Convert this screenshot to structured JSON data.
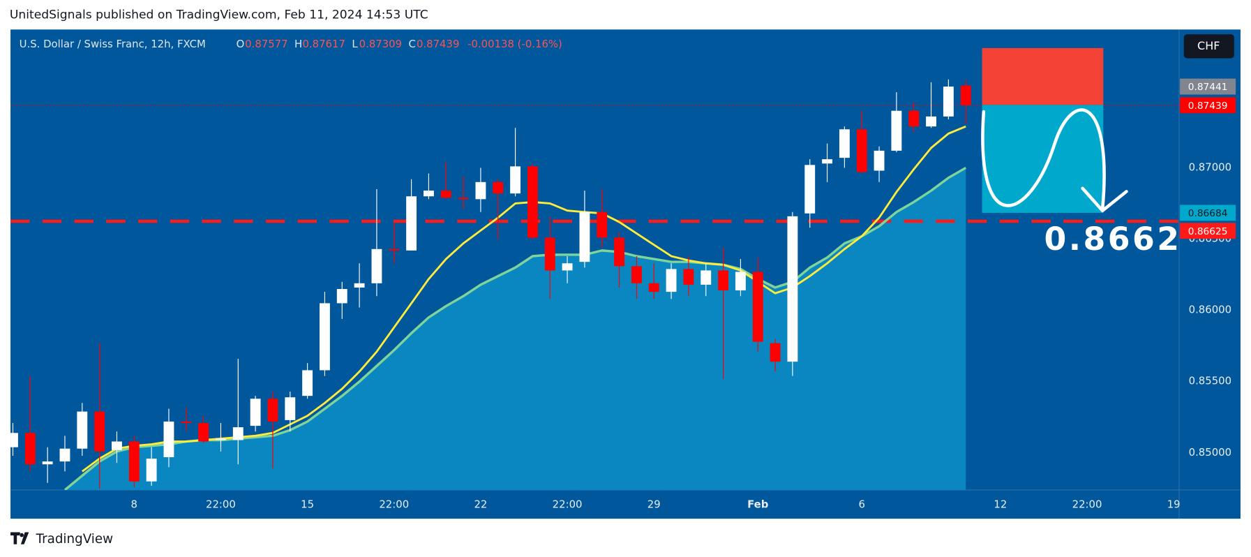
{
  "header": {
    "text": "UnitedSignals published on TradingView.com, Feb 11, 2024 14:53 UTC"
  },
  "footer": {
    "brand": "TradingView"
  },
  "chart_data": {
    "type": "candlestick",
    "title": "U.S. Dollar / Swiss Franc, 12h, FXCM",
    "legend": {
      "o": "O",
      "h": "H",
      "l": "L",
      "c": "C",
      "change": "-0.00138 (-0.16%)"
    },
    "currency": "CHF",
    "categories": [
      null,
      null,
      null,
      null,
      null,
      null,
      null,
      "8",
      null,
      null,
      null,
      null,
      "22:00",
      null,
      null,
      null,
      null,
      "15",
      null,
      null,
      null,
      null,
      "22:00",
      null,
      null,
      null,
      null,
      "22",
      null,
      null,
      null,
      null,
      "22:00",
      null,
      null,
      null,
      null,
      "29",
      null,
      null,
      null,
      null,
      null,
      "Feb",
      null,
      null,
      null,
      null,
      null,
      "6",
      null,
      null,
      null,
      null,
      null,
      null,
      null,
      "12",
      null,
      null,
      null,
      null,
      "22:00",
      null,
      null,
      null,
      null,
      "19"
    ],
    "open": [
      0.8504,
      0.8514,
      0.8492,
      0.8494,
      0.8503,
      0.8529,
      0.8502,
      0.8508,
      0.848,
      0.8497,
      0.8522,
      0.8521,
      0.8509,
      0.8509,
      0.8519,
      0.8538,
      0.8523,
      0.854,
      0.8558,
      0.8605,
      0.8616,
      0.8619,
      0.8643,
      0.8642,
      0.868,
      0.8684,
      0.8679,
      0.8678,
      0.869,
      0.8682,
      0.8701,
      0.8651,
      0.8628,
      0.8634,
      0.8669,
      0.8651,
      0.8631,
      0.8619,
      0.8613,
      0.8629,
      0.8618,
      0.8628,
      0.8614,
      0.8627,
      0.8577,
      0.8564,
      0.8668,
      0.8703,
      0.8707,
      0.8727,
      0.8698,
      0.8712,
      0.874,
      0.8729,
      0.8736,
      0.87577,
      null,
      null,
      null,
      null,
      null,
      null,
      null,
      null,
      null,
      null,
      null,
      null
    ],
    "high": [
      0.8521,
      0.8554,
      0.8504,
      0.8512,
      0.8535,
      0.8577,
      0.8515,
      0.8512,
      0.8504,
      0.8531,
      0.8532,
      0.8526,
      0.8521,
      0.8566,
      0.854,
      0.8543,
      0.8543,
      0.8563,
      0.8613,
      0.862,
      0.8633,
      0.8685,
      0.8661,
      0.8692,
      0.8696,
      0.8704,
      0.8694,
      0.87,
      0.8692,
      0.8728,
      0.8703,
      0.8666,
      0.8638,
      0.8684,
      0.8685,
      0.8655,
      0.8638,
      0.8633,
      0.8633,
      0.8638,
      0.8633,
      0.8644,
      0.8636,
      0.8637,
      0.858,
      0.8669,
      0.8706,
      0.8717,
      0.8729,
      0.874,
      0.8715,
      0.8753,
      0.8746,
      0.876,
      0.8762,
      0.87617,
      null,
      null,
      null,
      null,
      null,
      null,
      null,
      null,
      null,
      null,
      null,
      null
    ],
    "low": [
      0.8498,
      0.8487,
      0.8479,
      0.8487,
      0.8498,
      0.8475,
      0.8493,
      0.8476,
      0.8477,
      0.849,
      0.8515,
      0.8507,
      0.8501,
      0.8492,
      0.8515,
      0.8489,
      0.8515,
      0.8538,
      0.8554,
      0.8594,
      0.8602,
      0.861,
      0.8633,
      0.8642,
      0.8678,
      0.8678,
      0.8671,
      0.8669,
      0.865,
      0.868,
      0.865,
      0.8608,
      0.8619,
      0.863,
      0.8644,
      0.8616,
      0.8608,
      0.8608,
      0.8608,
      0.861,
      0.861,
      0.8552,
      0.861,
      0.8571,
      0.8557,
      0.8554,
      0.8658,
      0.869,
      0.87,
      0.8696,
      0.869,
      0.8711,
      0.8725,
      0.8728,
      0.8734,
      0.87309,
      null,
      null,
      null,
      null,
      null,
      null,
      null,
      null,
      null,
      null,
      null,
      null
    ],
    "close": [
      0.8514,
      0.8492,
      0.8494,
      0.8503,
      0.8529,
      0.8501,
      0.8508,
      0.848,
      0.8496,
      0.8522,
      0.8521,
      0.8508,
      0.851,
      0.8518,
      0.8538,
      0.8522,
      0.8539,
      0.8558,
      0.8605,
      0.8615,
      0.8619,
      0.8643,
      0.8642,
      0.868,
      0.8684,
      0.8679,
      0.8678,
      0.869,
      0.8682,
      0.8701,
      0.8651,
      0.8628,
      0.8633,
      0.8669,
      0.8651,
      0.8631,
      0.8619,
      0.8613,
      0.8629,
      0.8618,
      0.8628,
      0.8614,
      0.8627,
      0.8578,
      0.8564,
      0.8666,
      0.8702,
      0.8706,
      0.8727,
      0.8697,
      0.8712,
      0.874,
      0.8729,
      0.8736,
      0.8757,
      0.87439,
      null,
      null,
      null,
      null,
      null,
      null,
      null,
      null,
      null,
      null,
      null,
      null
    ],
    "up_color": "#ffffff",
    "down_color": "#ff0000",
    "series": [
      {
        "color": "#7fd49a",
        "fill": "#0a86c1",
        "values": [
          null,
          null,
          null,
          0.8474,
          0.8484,
          0.8494,
          0.8501,
          0.8504,
          0.8505,
          0.8506,
          0.8508,
          0.8509,
          0.8509,
          0.851,
          0.8511,
          0.8512,
          0.8516,
          0.8522,
          0.8531,
          0.854,
          0.855,
          0.8561,
          0.8572,
          0.8584,
          0.8595,
          0.8603,
          0.861,
          0.8618,
          0.8624,
          0.863,
          0.8638,
          0.8639,
          0.8639,
          0.8639,
          0.8642,
          0.8641,
          0.8638,
          0.8636,
          0.8634,
          0.8634,
          0.8633,
          0.8632,
          0.8629,
          0.8622,
          0.8616,
          0.862,
          0.863,
          0.8637,
          0.8647,
          0.8652,
          0.8659,
          0.8669,
          0.8676,
          0.8684,
          0.8693,
          0.87,
          null,
          null,
          null,
          null,
          null,
          null,
          null,
          null,
          null,
          null,
          null,
          null
        ]
      },
      {
        "color": "#ffeb3b",
        "values": [
          null,
          null,
          null,
          null,
          0.8487,
          0.8496,
          0.8503,
          0.8505,
          0.8506,
          0.8508,
          0.8508,
          0.8509,
          0.851,
          0.8511,
          0.8512,
          0.8514,
          0.852,
          0.8526,
          0.8535,
          0.8545,
          0.8557,
          0.8571,
          0.8588,
          0.8605,
          0.8622,
          0.8636,
          0.8647,
          0.8656,
          0.8665,
          0.8675,
          0.8676,
          0.8675,
          0.867,
          0.8669,
          0.8668,
          0.8662,
          0.8654,
          0.8646,
          0.8638,
          0.8635,
          0.8633,
          0.8632,
          0.8628,
          0.862,
          0.8612,
          0.8616,
          0.8624,
          0.8633,
          0.8643,
          0.8652,
          0.8665,
          0.8683,
          0.8699,
          0.8714,
          0.8724,
          0.8729,
          null,
          null,
          null,
          null,
          null,
          null,
          null,
          null,
          null,
          null,
          null,
          null
        ]
      }
    ],
    "ylim": [
      0.8474,
      0.8797
    ],
    "yticks": [
      {
        "value": 0.85,
        "label": "0.85000"
      },
      {
        "value": 0.855,
        "label": "0.85500"
      },
      {
        "value": 0.86,
        "label": "0.86000"
      },
      {
        "value": 0.865,
        "label": "0.86500"
      },
      {
        "value": 0.87,
        "label": "0.87000"
      }
    ],
    "grid": false,
    "position": {
      "stop": 0.8784,
      "entry": 0.87441,
      "target": 0.86684,
      "stop_color": "#f44336",
      "target_color": "#00a9cc"
    },
    "level": {
      "value": 0.86625,
      "color": "#ff1a1a"
    },
    "annotation": "0.8662"
  }
}
